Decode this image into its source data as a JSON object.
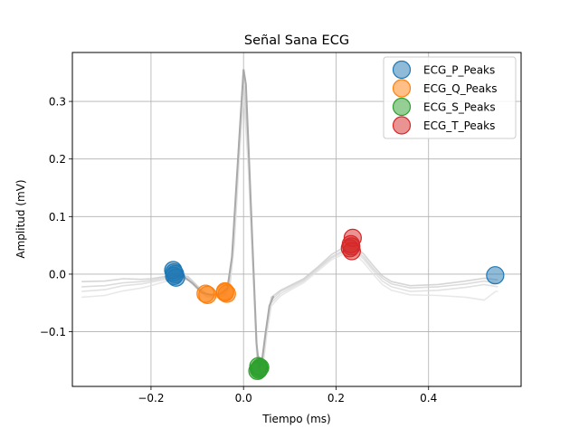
{
  "chart_data": {
    "type": "scatter",
    "title": "Señal Sana ECG",
    "xlabel": "Tiempo (ms)",
    "ylabel": "Amplitud (mV)",
    "xlim": [
      -0.37,
      0.6
    ],
    "ylim": [
      -0.195,
      0.385
    ],
    "xticks": [
      -0.2,
      0.0,
      0.2,
      0.4
    ],
    "xtick_labels": [
      "−0.2",
      "0.0",
      "0.2",
      "0.4"
    ],
    "yticks": [
      -0.1,
      0.0,
      0.1,
      0.2,
      0.3
    ],
    "ytick_labels": [
      "−0.1",
      "0.0",
      "0.1",
      "0.2",
      "0.3"
    ],
    "grid": true,
    "legend_position": "top-right",
    "background_traces": [
      {
        "color": "#c8c8c8",
        "points": [
          [
            -0.35,
            -0.013
          ],
          [
            -0.3,
            -0.012
          ],
          [
            -0.26,
            -0.008
          ],
          [
            -0.22,
            -0.009
          ],
          [
            -0.2,
            -0.008
          ],
          [
            -0.17,
            -0.004
          ],
          [
            -0.15,
            -0.001
          ],
          [
            -0.12,
            -0.004
          ],
          [
            -0.1,
            -0.02
          ],
          [
            -0.08,
            -0.035
          ],
          [
            -0.06,
            -0.036
          ],
          [
            -0.04,
            -0.032
          ],
          [
            -0.03,
            -0.02
          ],
          [
            -0.02,
            0.08
          ],
          [
            -0.01,
            0.23
          ],
          [
            0.0,
            0.34
          ],
          [
            0.01,
            0.22
          ],
          [
            0.02,
            0.04
          ],
          [
            0.03,
            -0.14
          ],
          [
            0.04,
            -0.15
          ],
          [
            0.05,
            -0.09
          ],
          [
            0.06,
            -0.04
          ],
          [
            0.08,
            -0.028
          ],
          [
            0.1,
            -0.02
          ],
          [
            0.13,
            -0.008
          ],
          [
            0.16,
            0.012
          ],
          [
            0.19,
            0.034
          ],
          [
            0.22,
            0.048
          ],
          [
            0.24,
            0.048
          ],
          [
            0.26,
            0.035
          ],
          [
            0.28,
            0.015
          ],
          [
            0.3,
            -0.003
          ],
          [
            0.32,
            -0.013
          ],
          [
            0.36,
            -0.02
          ],
          [
            0.42,
            -0.018
          ],
          [
            0.48,
            -0.012
          ],
          [
            0.52,
            -0.007
          ],
          [
            0.55,
            -0.01
          ]
        ]
      },
      {
        "color": "#d0d0d0",
        "points": [
          [
            -0.35,
            -0.022
          ],
          [
            -0.3,
            -0.02
          ],
          [
            -0.26,
            -0.015
          ],
          [
            -0.22,
            -0.013
          ],
          [
            -0.2,
            -0.011
          ],
          [
            -0.17,
            -0.006
          ],
          [
            -0.15,
            -0.003
          ],
          [
            -0.12,
            -0.006
          ],
          [
            -0.1,
            -0.022
          ],
          [
            -0.08,
            -0.037
          ],
          [
            -0.06,
            -0.038
          ],
          [
            -0.04,
            -0.034
          ],
          [
            -0.03,
            -0.02
          ],
          [
            -0.02,
            0.07
          ],
          [
            -0.01,
            0.21
          ],
          [
            0.0,
            0.33
          ],
          [
            0.01,
            0.21
          ],
          [
            0.02,
            0.03
          ],
          [
            0.03,
            -0.15
          ],
          [
            0.04,
            -0.16
          ],
          [
            0.05,
            -0.095
          ],
          [
            0.06,
            -0.045
          ],
          [
            0.08,
            -0.03
          ],
          [
            0.1,
            -0.022
          ],
          [
            0.13,
            -0.01
          ],
          [
            0.16,
            0.01
          ],
          [
            0.19,
            0.03
          ],
          [
            0.22,
            0.043
          ],
          [
            0.24,
            0.044
          ],
          [
            0.26,
            0.03
          ],
          [
            0.28,
            0.01
          ],
          [
            0.3,
            -0.007
          ],
          [
            0.32,
            -0.017
          ],
          [
            0.36,
            -0.024
          ],
          [
            0.42,
            -0.022
          ],
          [
            0.48,
            -0.017
          ],
          [
            0.52,
            -0.012
          ],
          [
            0.55,
            -0.016
          ]
        ]
      },
      {
        "color": "#d8d8d8",
        "points": [
          [
            -0.35,
            -0.03
          ],
          [
            -0.3,
            -0.027
          ],
          [
            -0.26,
            -0.02
          ],
          [
            -0.22,
            -0.017
          ],
          [
            -0.2,
            -0.014
          ],
          [
            -0.17,
            -0.009
          ],
          [
            -0.15,
            -0.005
          ],
          [
            -0.12,
            -0.008
          ],
          [
            -0.1,
            -0.024
          ],
          [
            -0.08,
            -0.038
          ],
          [
            -0.06,
            -0.04
          ],
          [
            -0.04,
            -0.036
          ],
          [
            -0.03,
            -0.022
          ],
          [
            -0.02,
            0.06
          ],
          [
            -0.01,
            0.2
          ],
          [
            0.0,
            0.32
          ],
          [
            0.01,
            0.2
          ],
          [
            0.02,
            0.02
          ],
          [
            0.03,
            -0.16
          ],
          [
            0.04,
            -0.17
          ],
          [
            0.05,
            -0.1
          ],
          [
            0.06,
            -0.05
          ],
          [
            0.08,
            -0.034
          ],
          [
            0.1,
            -0.025
          ],
          [
            0.13,
            -0.012
          ],
          [
            0.16,
            0.008
          ],
          [
            0.19,
            0.028
          ],
          [
            0.22,
            0.04
          ],
          [
            0.24,
            0.04
          ],
          [
            0.26,
            0.026
          ],
          [
            0.28,
            0.006
          ],
          [
            0.3,
            -0.012
          ],
          [
            0.32,
            -0.022
          ],
          [
            0.36,
            -0.03
          ],
          [
            0.42,
            -0.028
          ],
          [
            0.48,
            -0.023
          ],
          [
            0.52,
            -0.018
          ],
          [
            0.55,
            -0.022
          ]
        ]
      },
      {
        "color": "#e0e0e0",
        "points": [
          [
            -0.35,
            -0.04
          ],
          [
            -0.3,
            -0.037
          ],
          [
            -0.26,
            -0.029
          ],
          [
            -0.22,
            -0.024
          ],
          [
            -0.2,
            -0.02
          ],
          [
            -0.17,
            -0.013
          ],
          [
            -0.15,
            -0.008
          ],
          [
            -0.12,
            -0.01
          ],
          [
            -0.1,
            -0.026
          ],
          [
            -0.08,
            -0.04
          ],
          [
            -0.06,
            -0.041
          ],
          [
            -0.04,
            -0.037
          ],
          [
            -0.03,
            -0.024
          ],
          [
            -0.02,
            0.05
          ],
          [
            -0.01,
            0.19
          ],
          [
            0.0,
            0.31
          ],
          [
            0.01,
            0.19
          ],
          [
            0.02,
            0.01
          ],
          [
            0.03,
            -0.165
          ],
          [
            0.04,
            -0.175
          ],
          [
            0.05,
            -0.105
          ],
          [
            0.06,
            -0.055
          ],
          [
            0.08,
            -0.038
          ],
          [
            0.1,
            -0.028
          ],
          [
            0.13,
            -0.015
          ],
          [
            0.16,
            0.005
          ],
          [
            0.19,
            0.025
          ],
          [
            0.22,
            0.036
          ],
          [
            0.24,
            0.036
          ],
          [
            0.26,
            0.02
          ],
          [
            0.28,
            0.0
          ],
          [
            0.3,
            -0.018
          ],
          [
            0.32,
            -0.028
          ],
          [
            0.36,
            -0.036
          ],
          [
            0.42,
            -0.037
          ],
          [
            0.48,
            -0.04
          ],
          [
            0.52,
            -0.045
          ],
          [
            0.545,
            -0.03
          ],
          [
            0.55,
            -0.03
          ]
        ]
      }
    ],
    "mean_trace": {
      "color": "#a9a9a9",
      "points": [
        [
          -0.15,
          -0.003
        ],
        [
          -0.13,
          -0.004
        ],
        [
          -0.11,
          -0.016
        ],
        [
          -0.09,
          -0.032
        ],
        [
          -0.07,
          -0.036
        ],
        [
          -0.05,
          -0.034
        ],
        [
          -0.035,
          -0.025
        ],
        [
          -0.025,
          0.03
        ],
        [
          -0.015,
          0.16
        ],
        [
          -0.005,
          0.29
        ],
        [
          0.0,
          0.356
        ],
        [
          0.005,
          0.33
        ],
        [
          0.012,
          0.2
        ],
        [
          0.02,
          0.04
        ],
        [
          0.028,
          -0.12
        ],
        [
          0.034,
          -0.163
        ],
        [
          0.04,
          -0.15
        ],
        [
          0.048,
          -0.1
        ],
        [
          0.056,
          -0.055
        ],
        [
          0.065,
          -0.038
        ]
      ]
    },
    "series": [
      {
        "name": "ECG_P_Peaks",
        "color": "#1f77b4",
        "x": [
          -0.152,
          -0.148,
          -0.15,
          -0.146,
          -0.15,
          0.544
        ],
        "y": [
          0.007,
          0.0,
          -0.003,
          -0.006,
          0.003,
          -0.002
        ]
      },
      {
        "name": "ECG_Q_Peaks",
        "color": "#ff7f0e",
        "x": [
          -0.082,
          -0.078,
          -0.04,
          -0.036,
          -0.04
        ],
        "y": [
          -0.034,
          -0.036,
          -0.032,
          -0.034,
          -0.03
        ]
      },
      {
        "name": "ECG_S_Peaks",
        "color": "#2ca02c",
        "x": [
          0.032,
          0.034,
          0.03,
          0.036,
          0.033
        ],
        "y": [
          -0.16,
          -0.164,
          -0.168,
          -0.162,
          -0.166
        ]
      },
      {
        "name": "ECG_T_Peaks",
        "color": "#d62728",
        "x": [
          0.236,
          0.232,
          0.23,
          0.234,
          0.233
        ],
        "y": [
          0.063,
          0.052,
          0.045,
          0.04,
          0.048
        ]
      }
    ]
  }
}
